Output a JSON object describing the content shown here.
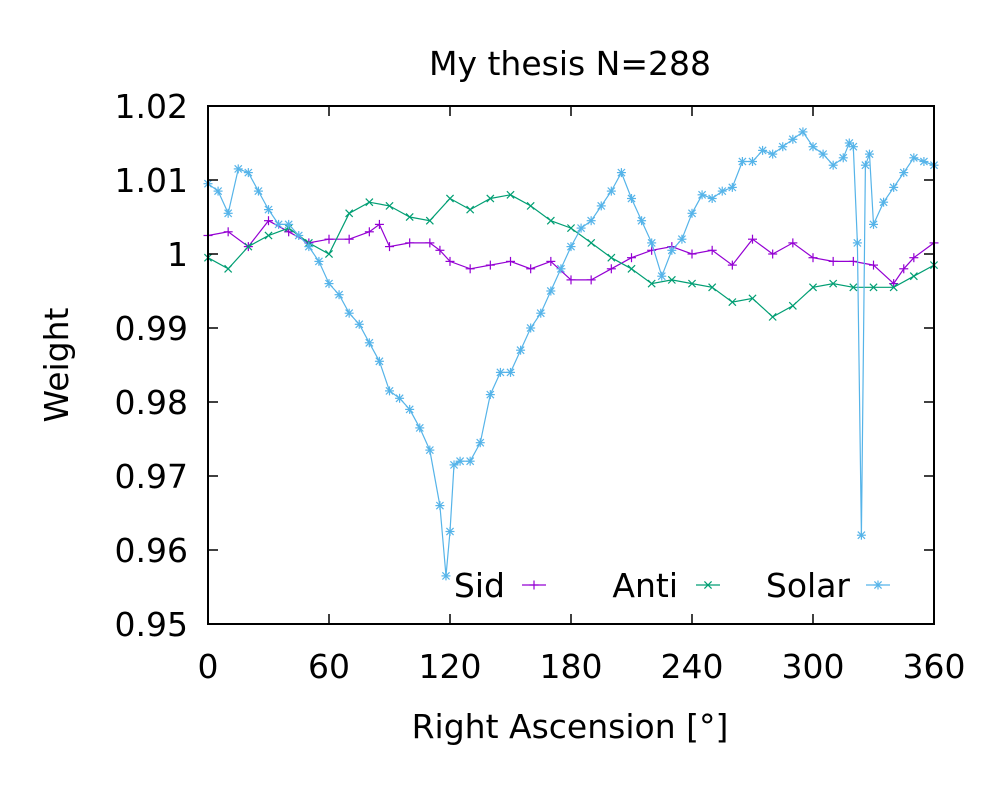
{
  "chart_data": {
    "type": "line",
    "title": "My thesis N=288",
    "xlabel": "Right Ascension [°]",
    "ylabel": "Weight",
    "xlim": [
      0,
      360
    ],
    "ylim": [
      0.95,
      1.02
    ],
    "x_ticks": [
      0,
      60,
      120,
      180,
      240,
      300,
      360
    ],
    "x_tick_labels": [
      "0",
      "60",
      "120",
      "180",
      "240",
      "300",
      "360"
    ],
    "y_ticks": [
      0.95,
      0.96,
      0.97,
      0.98,
      0.99,
      1.0,
      1.01,
      1.02
    ],
    "y_tick_labels": [
      "0.95",
      "0.96",
      "0.97",
      "0.98",
      "0.99",
      "1",
      "1.01",
      "1.02"
    ],
    "grid": false,
    "legend_position": "bottom-right",
    "series": [
      {
        "name": "Sid",
        "color": "#9400d3",
        "marker": "plus",
        "x": [
          0,
          10,
          20,
          30,
          40,
          50,
          60,
          70,
          80,
          85,
          90,
          100,
          110,
          115,
          120,
          130,
          140,
          150,
          160,
          170,
          180,
          190,
          200,
          210,
          220,
          230,
          240,
          250,
          260,
          270,
          280,
          290,
          300,
          310,
          320,
          330,
          340,
          345,
          350,
          360
        ],
        "y": [
          1.0025,
          1.003,
          1.001,
          1.0045,
          1.003,
          1.0015,
          1.002,
          1.002,
          1.003,
          1.004,
          1.001,
          1.0015,
          1.0015,
          1.0005,
          0.999,
          0.998,
          0.9985,
          0.999,
          0.998,
          0.999,
          0.9965,
          0.9965,
          0.998,
          0.9995,
          1.0005,
          1.001,
          1.0,
          1.0005,
          0.9985,
          1.002,
          1.0,
          1.0015,
          0.9995,
          0.999,
          0.999,
          0.9985,
          0.996,
          0.998,
          0.9995,
          1.0015
        ]
      },
      {
        "name": "Anti",
        "color": "#009e73",
        "marker": "cross",
        "x": [
          0,
          10,
          20,
          30,
          40,
          50,
          60,
          70,
          80,
          90,
          100,
          110,
          120,
          130,
          140,
          150,
          160,
          170,
          180,
          190,
          200,
          210,
          220,
          230,
          240,
          250,
          260,
          270,
          280,
          290,
          300,
          310,
          320,
          330,
          340,
          350,
          360
        ],
        "y": [
          0.9995,
          0.998,
          1.001,
          1.0025,
          1.0035,
          1.0015,
          1.0,
          1.0055,
          1.007,
          1.0065,
          1.005,
          1.0045,
          1.0075,
          1.006,
          1.0075,
          1.008,
          1.0065,
          1.0045,
          1.0035,
          1.0015,
          0.9995,
          0.998,
          0.996,
          0.9965,
          0.996,
          0.9955,
          0.9935,
          0.994,
          0.9915,
          0.993,
          0.9955,
          0.996,
          0.9955,
          0.9955,
          0.9955,
          0.997,
          0.9985
        ]
      },
      {
        "name": "Solar",
        "color": "#56b4e9",
        "marker": "star",
        "x": [
          0,
          5,
          10,
          15,
          20,
          25,
          30,
          35,
          40,
          45,
          50,
          55,
          60,
          65,
          70,
          75,
          80,
          85,
          90,
          95,
          100,
          105,
          110,
          115,
          118,
          120,
          122,
          125,
          130,
          135,
          140,
          145,
          150,
          155,
          160,
          165,
          170,
          175,
          180,
          185,
          190,
          195,
          200,
          205,
          210,
          215,
          220,
          225,
          230,
          235,
          240,
          245,
          250,
          255,
          260,
          265,
          270,
          275,
          280,
          285,
          290,
          295,
          300,
          305,
          310,
          315,
          318,
          320,
          322,
          324,
          326,
          328,
          330,
          335,
          340,
          345,
          350,
          355,
          360
        ],
        "y": [
          1.0095,
          1.0085,
          1.0055,
          1.0115,
          1.011,
          1.0085,
          1.006,
          1.004,
          1.004,
          1.0025,
          1.001,
          0.999,
          0.996,
          0.9945,
          0.992,
          0.9905,
          0.988,
          0.9855,
          0.9815,
          0.9805,
          0.979,
          0.9765,
          0.9735,
          0.966,
          0.9565,
          0.9625,
          0.9715,
          0.972,
          0.972,
          0.9745,
          0.981,
          0.984,
          0.984,
          0.987,
          0.99,
          0.992,
          0.995,
          0.998,
          1.001,
          1.0035,
          1.0045,
          1.0065,
          1.0085,
          1.011,
          1.0075,
          1.0045,
          1.0015,
          0.997,
          1.0005,
          1.002,
          1.0055,
          1.008,
          1.0075,
          1.0085,
          1.009,
          1.0125,
          1.0125,
          1.014,
          1.0135,
          1.0145,
          1.0155,
          1.0165,
          1.0145,
          1.0135,
          1.012,
          1.013,
          1.015,
          1.0145,
          1.0015,
          0.962,
          1.012,
          1.0135,
          1.004,
          1.007,
          1.009,
          1.011,
          1.013,
          1.0125,
          1.012
        ]
      }
    ]
  }
}
